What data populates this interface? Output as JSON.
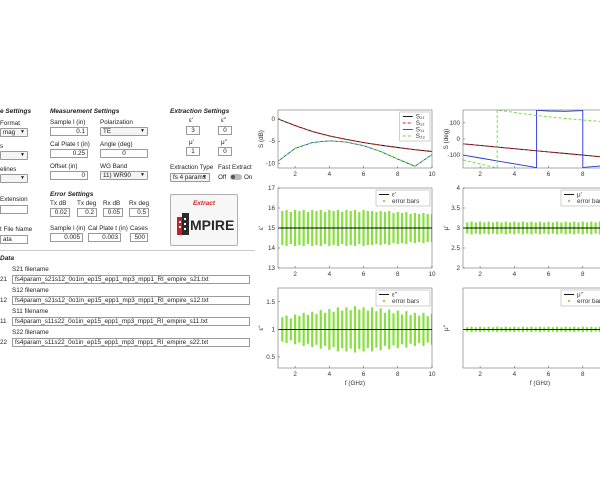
{
  "file_settings": {
    "title": "e Settings",
    "format_label": "Format",
    "format_value": "mag",
    "s_label": "s",
    "elines_label": "elines",
    "extension_label": "Extension",
    "file_name_label": "t File Name",
    "file_name_value": "ata"
  },
  "measurement_settings": {
    "title": "Measurement Settings",
    "sample_label": "Sample l (in)",
    "sample_value": 0.1,
    "polarization_label": "Polarization",
    "polarization_value": "TE",
    "cal_label": "Cal Plate t (in)",
    "cal_value": 0.25,
    "angle_label": "Angle (deg)",
    "angle_value": 0,
    "offset_label": "Offset (in)",
    "offset_value": 0,
    "wg_label": "WG Band",
    "wg_value": "11) WR90"
  },
  "error_settings": {
    "title": "Error Settings",
    "fields": [
      {
        "label": "Tx dB",
        "value": 0.02
      },
      {
        "label": "Tx deg",
        "value": 0.2
      },
      {
        "label": "Rx dB",
        "value": 0.05
      },
      {
        "label": "Rx deg",
        "value": 0.5
      }
    ],
    "fields2": [
      {
        "label": "Sample l (in)",
        "value": 0.005
      },
      {
        "label": "Cal Plate t (in)",
        "value": 0.003
      },
      {
        "label": "Cases",
        "value": 500
      }
    ]
  },
  "extraction_settings": {
    "title": "Extraction Settings",
    "fields": [
      {
        "label": "ε'",
        "value": 3
      },
      {
        "label": "ε''",
        "value": 0
      },
      {
        "label": "μ'",
        "value": 1
      },
      {
        "label": "μ''",
        "value": 0
      }
    ],
    "type_label": "Extraction Type",
    "type_value": "fs 4 params",
    "fast_label": "Fast Extract",
    "off": "Off",
    "on": "On",
    "extract_button": "Extract",
    "logo": "MPIRE"
  },
  "data_section": {
    "title": "Data",
    "files": [
      {
        "tag": "21",
        "label": "S21 filename",
        "value": "fs4param_s21s12_0o1in_ep15_epp1_mp3_mpp1_RI_empire_s21.txt"
      },
      {
        "tag": "12",
        "label": "S12 filename",
        "value": "fs4param_s21s12_0o1in_ep15_epp1_mp3_mpp1_RI_empire_s12.txt"
      },
      {
        "tag": "11",
        "label": "S11 filename",
        "value": "fs4param_s11s22_0o1in_ep15_epp1_mp3_mpp1_RI_empire_s11.txt"
      },
      {
        "tag": "22",
        "label": "S22 filename",
        "value": "fs4param_s11s22_0o1in_ep15_epp1_mp3_mpp1_RI_empire_s22.txt"
      }
    ]
  },
  "plots": [
    {
      "ylabel": "S (dB)",
      "xlim": [
        1,
        10
      ],
      "xticks": [
        2,
        4,
        6,
        8,
        10
      ],
      "ylim": [
        -11,
        2
      ],
      "yticks": [
        -10,
        -5,
        0
      ],
      "series": [
        {
          "name": "S₂₁",
          "color": "#000000",
          "x": [
            1,
            2,
            3,
            4,
            5,
            6,
            7,
            8,
            9,
            10
          ],
          "values": [
            0,
            -1.5,
            -2.8,
            -3.8,
            -4.6,
            -5.3,
            -5.9,
            -6.4,
            -6.9,
            -7.3
          ]
        },
        {
          "name": "S₁₂",
          "color": "#dd2222",
          "dashed": true,
          "x": [
            1,
            2,
            3,
            4,
            5,
            6,
            7,
            8,
            9,
            10
          ],
          "values": [
            0,
            -1.5,
            -2.8,
            -3.8,
            -4.6,
            -5.3,
            -5.9,
            -6.4,
            -6.9,
            -7.3
          ]
        },
        {
          "name": "S₁₁",
          "color": "#2233dd",
          "x": [
            1,
            2,
            3,
            4,
            5,
            6,
            7,
            8,
            9,
            10
          ],
          "values": [
            -9.5,
            -6.6,
            -5.3,
            -4.9,
            -5.2,
            -6,
            -7.3,
            -9,
            -10.6,
            -8
          ]
        },
        {
          "name": "S₂₂",
          "color": "#66dd33",
          "dashed": true,
          "x": [
            1,
            2,
            3,
            4,
            5,
            6,
            7,
            8,
            9,
            10
          ],
          "values": [
            -9.5,
            -6.6,
            -5.3,
            -4.9,
            -5.2,
            -6,
            -7.3,
            -9,
            -10.6,
            -8
          ]
        }
      ]
    },
    {
      "ylabel": "S (deg)",
      "xlim": [
        1,
        10
      ],
      "xticks": [
        2,
        4,
        6,
        8,
        10
      ],
      "ylim": [
        -180,
        180
      ],
      "yticks": [
        -100,
        0,
        100
      ],
      "series": [
        {
          "color": "#000000",
          "x": [
            1,
            2,
            3,
            4,
            5,
            6,
            7,
            8,
            9,
            10
          ],
          "values": [
            -30,
            -40,
            -50,
            -60,
            -70,
            -80,
            -90,
            -100,
            -110,
            -120
          ]
        },
        {
          "color": "#dd2222",
          "dashed": true,
          "x": [
            1,
            2,
            3,
            4,
            5,
            6,
            7,
            8,
            9,
            10
          ],
          "values": [
            -30,
            -40,
            -50,
            -60,
            -70,
            -80,
            -90,
            -100,
            -110,
            -120
          ]
        },
        {
          "color": "#2233dd",
          "x": [
            1,
            2,
            3,
            4,
            5,
            5.3,
            5.3,
            6,
            7,
            8,
            8,
            9,
            10
          ],
          "values": [
            -100,
            -118,
            -136,
            -154,
            -172,
            -178,
            178,
            174,
            172,
            176,
            -176,
            -168,
            -160
          ]
        },
        {
          "color": "#66dd33",
          "dashed": true,
          "x": [
            1,
            2,
            3,
            3,
            4,
            5,
            6,
            7,
            8,
            9,
            10
          ],
          "values": [
            -130,
            -155,
            -180,
            180,
            165,
            150,
            138,
            127,
            118,
            110,
            104
          ]
        }
      ]
    },
    {
      "ylabel": "ε'",
      "xlim": [
        1,
        10
      ],
      "xticks": [
        2,
        4,
        6,
        8,
        10
      ],
      "ylim": [
        13,
        17
      ],
      "yticks": [
        13,
        14,
        15,
        16,
        17
      ],
      "series": [
        {
          "name": "ε'",
          "color": "#000000",
          "x": [
            1,
            10
          ],
          "values": [
            15,
            15
          ]
        }
      ],
      "errorbars": {
        "name": "error bars",
        "color": "#88e040",
        "x": [
          1.25,
          1.5,
          1.75,
          2,
          2.25,
          2.5,
          2.75,
          3,
          3.25,
          3.5,
          3.75,
          4,
          4.25,
          4.5,
          4.75,
          5,
          5.25,
          5.5,
          5.75,
          6,
          6.25,
          6.5,
          6.75,
          7,
          7.25,
          7.5,
          7.75,
          8,
          8.25,
          8.5,
          8.75,
          9,
          9.25,
          9.5,
          9.75,
          10
        ],
        "values": [
          15,
          15,
          15,
          15,
          15,
          15,
          15,
          15,
          15,
          15,
          15,
          15,
          15,
          15,
          15,
          15,
          15,
          15,
          15,
          15,
          15,
          15,
          15,
          15,
          15,
          15,
          15,
          15,
          15,
          15,
          15,
          15,
          15,
          15,
          15,
          15
        ],
        "errors": [
          0.85,
          0.9,
          0.8,
          0.9,
          0.85,
          0.9,
          0.8,
          0.9,
          0.85,
          0.9,
          0.8,
          0.9,
          0.85,
          0.9,
          0.8,
          0.9,
          0.85,
          0.9,
          0.8,
          0.9,
          0.85,
          0.85,
          0.8,
          0.85,
          0.8,
          0.85,
          0.75,
          0.8,
          0.75,
          0.8,
          0.7,
          0.75,
          0.7,
          0.75,
          0.7,
          0.7
        ]
      }
    },
    {
      "ylabel": "μ'",
      "xlim": [
        1,
        10
      ],
      "xticks": [
        2,
        4,
        6,
        8,
        10
      ],
      "ylim": [
        2,
        4
      ],
      "yticks": [
        2,
        2.5,
        3,
        3.5,
        4
      ],
      "series": [
        {
          "name": "μ'",
          "color": "#000000",
          "x": [
            1,
            10
          ],
          "values": [
            3,
            3
          ]
        }
      ],
      "errorbars": {
        "name": "error bars",
        "color": "#88e040",
        "x": [
          1.25,
          1.5,
          1.75,
          2,
          2.25,
          2.5,
          2.75,
          3,
          3.25,
          3.5,
          3.75,
          4,
          4.25,
          4.5,
          4.75,
          5,
          5.25,
          5.5,
          5.75,
          6,
          6.25,
          6.5,
          6.75,
          7,
          7.25,
          7.5,
          7.75,
          8,
          8.25,
          8.5,
          8.75,
          9,
          9.25,
          9.5,
          9.75,
          10
        ],
        "values": [
          3,
          3,
          3,
          3,
          3,
          3,
          3,
          3,
          3,
          3,
          3,
          3,
          3,
          3,
          3,
          3,
          3,
          3,
          3,
          3,
          3,
          3,
          3,
          3,
          3,
          3,
          3,
          3,
          3,
          3,
          3,
          3,
          3,
          3,
          3,
          3
        ],
        "errors": [
          0.14,
          0.16,
          0.14,
          0.16,
          0.14,
          0.16,
          0.14,
          0.16,
          0.14,
          0.16,
          0.14,
          0.16,
          0.14,
          0.16,
          0.14,
          0.16,
          0.14,
          0.16,
          0.14,
          0.16,
          0.14,
          0.16,
          0.14,
          0.16,
          0.14,
          0.16,
          0.14,
          0.16,
          0.14,
          0.16,
          0.14,
          0.16,
          0.14,
          0.16,
          0.14,
          0.16
        ]
      }
    },
    {
      "ylabel": "ε''",
      "xlabel": "f (GHz)",
      "xlim": [
        1,
        10
      ],
      "xticks": [
        2,
        4,
        6,
        8,
        10
      ],
      "ylim": [
        0.3,
        1.75
      ],
      "yticks": [
        0.5,
        1,
        1.5
      ],
      "series": [
        {
          "name": "ε''",
          "color": "#000000",
          "x": [
            1,
            10
          ],
          "values": [
            1,
            1
          ]
        }
      ],
      "errorbars": {
        "name": "error bars",
        "color": "#88e040",
        "x": [
          1.25,
          1.5,
          1.75,
          2,
          2.25,
          2.5,
          2.75,
          3,
          3.25,
          3.5,
          3.75,
          4,
          4.25,
          4.5,
          4.75,
          5,
          5.25,
          5.5,
          5.75,
          6,
          6.25,
          6.5,
          6.75,
          7,
          7.25,
          7.5,
          7.75,
          8,
          8.25,
          8.5,
          8.75,
          9,
          9.25,
          9.5,
          9.75,
          10
        ],
        "values": [
          1,
          1,
          1,
          1,
          1,
          1,
          1,
          1,
          1,
          1,
          1,
          1,
          1,
          1,
          1,
          1,
          1,
          1,
          1,
          1,
          1,
          1,
          1,
          1,
          1,
          1,
          1,
          1,
          1,
          1,
          1,
          1,
          1,
          1,
          1,
          1
        ],
        "errors": [
          0.22,
          0.25,
          0.2,
          0.27,
          0.24,
          0.3,
          0.26,
          0.32,
          0.28,
          0.35,
          0.3,
          0.37,
          0.32,
          0.4,
          0.34,
          0.4,
          0.35,
          0.42,
          0.36,
          0.4,
          0.34,
          0.4,
          0.33,
          0.38,
          0.3,
          0.36,
          0.29,
          0.34,
          0.27,
          0.33,
          0.26,
          0.3,
          0.25,
          0.3,
          0.24,
          0.28
        ]
      }
    },
    {
      "ylabel": "μ''",
      "xlabel": "f (GHz)",
      "xlim": [
        1,
        10
      ],
      "xticks": [
        2,
        4,
        6,
        8,
        10
      ],
      "ylim": [
        0.3,
        1.75
      ],
      "series": [
        {
          "name": "μ''",
          "color": "#000000",
          "x": [
            1,
            10
          ],
          "values": [
            1,
            1
          ]
        }
      ],
      "errorbars": {
        "name": "error bars",
        "color": "#88e040",
        "x": [
          1.25,
          1.5,
          1.75,
          2,
          2.25,
          2.5,
          2.75,
          3,
          3.25,
          3.5,
          3.75,
          4,
          4.25,
          4.5,
          4.75,
          5,
          5.25,
          5.5,
          5.75,
          6,
          6.25,
          6.5,
          6.75,
          7,
          7.25,
          7.5,
          7.75,
          8,
          8.25,
          8.5,
          8.75,
          9,
          9.25,
          9.5,
          9.75,
          10
        ],
        "values": [
          1,
          1,
          1,
          1,
          1,
          1,
          1,
          1,
          1,
          1,
          1,
          1,
          1,
          1,
          1,
          1,
          1,
          1,
          1,
          1,
          1,
          1,
          1,
          1,
          1,
          1,
          1,
          1,
          1,
          1,
          1,
          1,
          1,
          1,
          1,
          1
        ],
        "errors": [
          0.04,
          0.05,
          0.04,
          0.05,
          0.04,
          0.05,
          0.04,
          0.05,
          0.04,
          0.05,
          0.04,
          0.05,
          0.04,
          0.05,
          0.04,
          0.05,
          0.04,
          0.05,
          0.04,
          0.05,
          0.04,
          0.05,
          0.04,
          0.05,
          0.04,
          0.05,
          0.04,
          0.05,
          0.04,
          0.05,
          0.04,
          0.05,
          0.04,
          0.05,
          0.04,
          0.05
        ]
      }
    }
  ]
}
